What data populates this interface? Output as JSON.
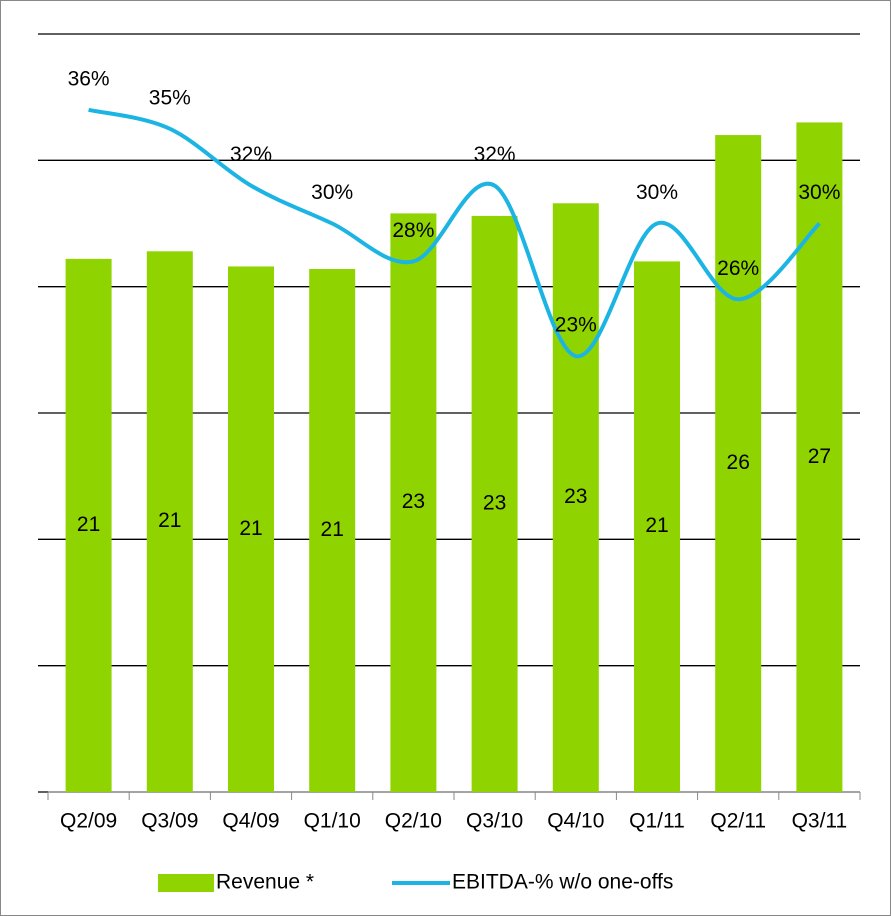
{
  "chart_data": {
    "type": "bar_line",
    "categories": [
      "Q2/09",
      "Q3/09",
      "Q4/09",
      "Q1/10",
      "Q2/10",
      "Q3/10",
      "Q4/10",
      "Q1/11",
      "Q2/11",
      "Q3/11"
    ],
    "series": [
      {
        "name": "Revenue *",
        "type": "bar",
        "color": "#8fd400",
        "values": [
          21.1,
          21.4,
          20.8,
          20.7,
          22.9,
          22.8,
          23.3,
          21.0,
          26.0,
          26.5
        ],
        "value_labels": [
          "21",
          "21",
          "21",
          "21",
          "23",
          "23",
          "23",
          "21",
          "26",
          "27"
        ]
      },
      {
        "name": "EBITDA-% w/o one-offs",
        "type": "line",
        "axis": "y2",
        "color": "#1cb5e3",
        "values": [
          36,
          35,
          32,
          30,
          28,
          32,
          23,
          30,
          26,
          30
        ],
        "value_labels": [
          "36%",
          "35%",
          "32%",
          "30%",
          "28%",
          "32%",
          "23%",
          "30%",
          "26%",
          "30%"
        ]
      }
    ],
    "ylim": [
      0,
      30
    ],
    "yticks": [
      0,
      5,
      10,
      15,
      20,
      25,
      30
    ],
    "y2lim": [
      0,
      40
    ],
    "grid": true,
    "legend": "bottom"
  }
}
